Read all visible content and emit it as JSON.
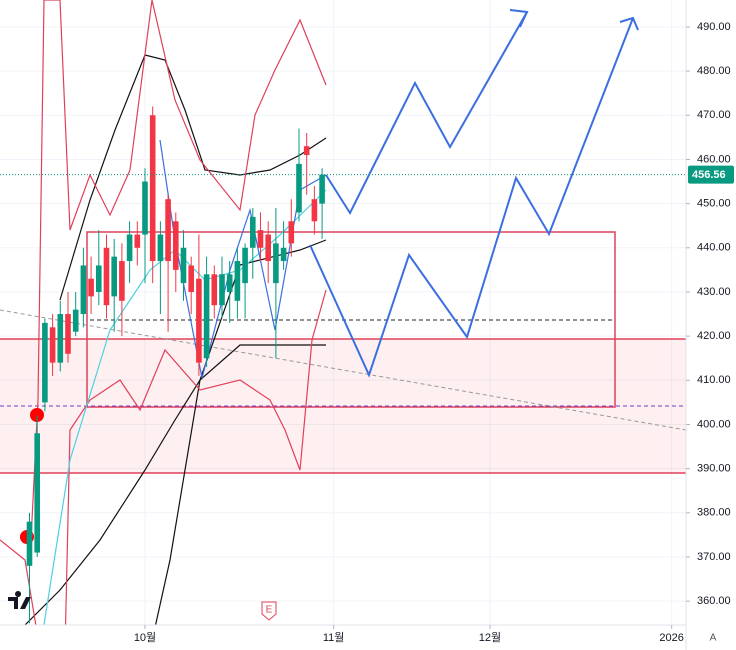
{
  "chart_data": {
    "type": "candlestick",
    "x": [
      -15,
      -14,
      -13,
      -12,
      -11,
      -10,
      -9,
      -8,
      -7,
      -6,
      -5,
      -4,
      -3,
      -2,
      -1,
      0,
      1,
      2,
      3,
      4,
      5,
      6,
      7,
      8,
      9,
      10,
      11,
      12,
      13,
      14,
      15,
      16,
      17,
      18,
      19,
      20,
      21,
      22,
      23
    ],
    "open": [
      368,
      371,
      405,
      422,
      414,
      425,
      421,
      425,
      433,
      430,
      440,
      429,
      437,
      437,
      443,
      443,
      470,
      437,
      451,
      446,
      432,
      436,
      433,
      415,
      434,
      427,
      430,
      428,
      432,
      440,
      444,
      443,
      432,
      437,
      446,
      448,
      463,
      451,
      450
    ],
    "high": [
      380,
      402,
      424,
      425,
      428,
      430,
      430,
      440,
      438,
      444,
      443,
      442,
      441,
      446,
      446,
      458,
      472,
      446,
      452,
      448,
      444,
      438,
      443,
      438,
      436,
      438,
      437,
      440,
      441,
      449,
      448,
      446,
      449,
      446,
      451,
      467,
      466,
      454,
      458
    ],
    "low": [
      355,
      370,
      403,
      411,
      412,
      414,
      420,
      422,
      425,
      427,
      424,
      421,
      420,
      432,
      436,
      432,
      432,
      425,
      421,
      430,
      428,
      425,
      411,
      413,
      424,
      424,
      423,
      424,
      424,
      433,
      437,
      432,
      415,
      435,
      438,
      446,
      452,
      443,
      442
    ],
    "close": [
      378,
      398,
      423,
      414,
      425,
      416,
      426,
      436,
      429,
      436,
      427,
      438,
      428,
      443,
      440,
      455,
      437,
      443,
      437,
      435,
      440,
      430,
      414,
      434,
      427,
      434,
      434,
      437,
      440,
      447,
      440,
      437,
      441,
      440,
      441,
      459,
      461,
      446,
      456.56
    ],
    "up_color": "#089981",
    "down_color": "#f23645",
    "last_price": 456.56,
    "ylim": [
      354.6,
      496.1
    ],
    "yticks": [
      {
        "value": 360,
        "label": "360.00"
      },
      {
        "value": 370,
        "label": "370.00"
      },
      {
        "value": 380,
        "label": "380.00"
      },
      {
        "value": 390,
        "label": "390.00"
      },
      {
        "value": 400,
        "label": "400.00"
      },
      {
        "value": 410,
        "label": "410.00"
      },
      {
        "value": 420,
        "label": "420.00"
      },
      {
        "value": 430,
        "label": "430.00"
      },
      {
        "value": 440,
        "label": "440.00"
      },
      {
        "value": 450,
        "label": "450.00"
      },
      {
        "value": 460,
        "label": "460.00"
      },
      {
        "value": 470,
        "label": "470.00"
      },
      {
        "value": 480,
        "label": "480.00"
      },
      {
        "value": 490,
        "label": "490.00"
      }
    ],
    "xlim": [
      -18.83,
      70.26
    ],
    "xticks": [
      {
        "value": 0,
        "label": "10월"
      },
      {
        "value": 24.5,
        "label": "11월"
      },
      {
        "value": 44.8,
        "label": "12월"
      },
      {
        "value": 68.4,
        "label": "2026"
      }
    ],
    "earnings_marker": "E",
    "scale_mode": "A",
    "grid": true
  }
}
